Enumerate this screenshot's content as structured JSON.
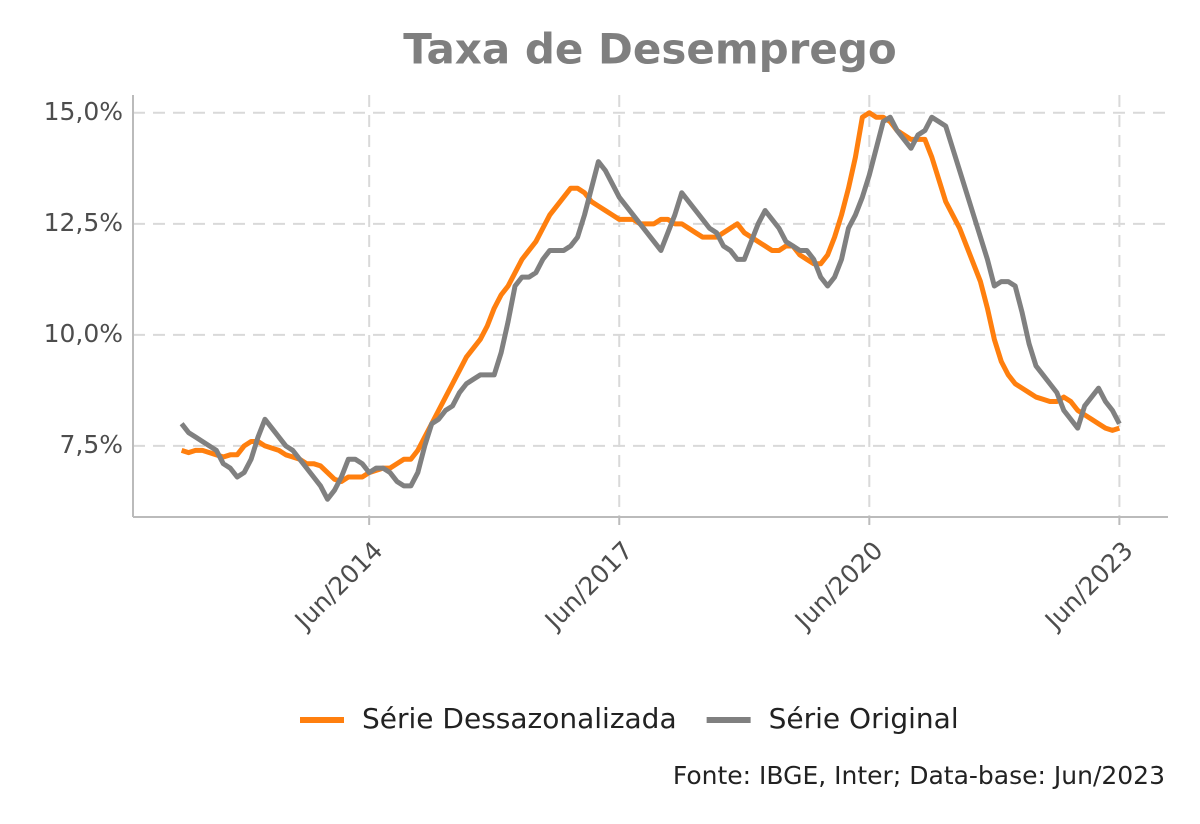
{
  "chart_data": {
    "type": "line",
    "title": "Taxa de Desemprego",
    "source": "Fonte: IBGE, Inter; Data-base: Jun/2023",
    "x": [
      "2012-03",
      "2012-04",
      "2012-05",
      "2012-06",
      "2012-07",
      "2012-08",
      "2012-09",
      "2012-10",
      "2012-11",
      "2012-12",
      "2013-01",
      "2013-02",
      "2013-03",
      "2013-04",
      "2013-05",
      "2013-06",
      "2013-07",
      "2013-08",
      "2013-09",
      "2013-10",
      "2013-11",
      "2013-12",
      "2014-01",
      "2014-02",
      "2014-03",
      "2014-04",
      "2014-05",
      "2014-06",
      "2014-07",
      "2014-08",
      "2014-09",
      "2014-10",
      "2014-11",
      "2014-12",
      "2015-01",
      "2015-02",
      "2015-03",
      "2015-04",
      "2015-05",
      "2015-06",
      "2015-07",
      "2015-08",
      "2015-09",
      "2015-10",
      "2015-11",
      "2015-12",
      "2016-01",
      "2016-02",
      "2016-03",
      "2016-04",
      "2016-05",
      "2016-06",
      "2016-07",
      "2016-08",
      "2016-09",
      "2016-10",
      "2016-11",
      "2016-12",
      "2017-01",
      "2017-02",
      "2017-03",
      "2017-04",
      "2017-05",
      "2017-06",
      "2017-07",
      "2017-08",
      "2017-09",
      "2017-10",
      "2017-11",
      "2017-12",
      "2018-01",
      "2018-02",
      "2018-03",
      "2018-04",
      "2018-05",
      "2018-06",
      "2018-07",
      "2018-08",
      "2018-09",
      "2018-10",
      "2018-11",
      "2018-12",
      "2019-01",
      "2019-02",
      "2019-03",
      "2019-04",
      "2019-05",
      "2019-06",
      "2019-07",
      "2019-08",
      "2019-09",
      "2019-10",
      "2019-11",
      "2019-12",
      "2020-01",
      "2020-02",
      "2020-03",
      "2020-04",
      "2020-05",
      "2020-06",
      "2020-07",
      "2020-08",
      "2020-09",
      "2020-10",
      "2020-11",
      "2020-12",
      "2021-01",
      "2021-02",
      "2021-03",
      "2021-04",
      "2021-05",
      "2021-06",
      "2021-07",
      "2021-08",
      "2021-09",
      "2021-10",
      "2021-11",
      "2021-12",
      "2022-01",
      "2022-02",
      "2022-03",
      "2022-04",
      "2022-05",
      "2022-06",
      "2022-07",
      "2022-08",
      "2022-09",
      "2022-10",
      "2022-11",
      "2022-12",
      "2023-01",
      "2023-02",
      "2023-03",
      "2023-04",
      "2023-05",
      "2023-06"
    ],
    "series": [
      {
        "name": "Série Dessazonalizada",
        "color": "#ff7f0e",
        "values": [
          7.4,
          7.35,
          7.4,
          7.4,
          7.35,
          7.3,
          7.25,
          7.3,
          7.3,
          7.5,
          7.6,
          7.6,
          7.5,
          7.45,
          7.4,
          7.3,
          7.25,
          7.2,
          7.1,
          7.1,
          7.05,
          6.9,
          6.75,
          6.7,
          6.8,
          6.8,
          6.8,
          6.9,
          6.95,
          7.0,
          7.0,
          7.1,
          7.2,
          7.2,
          7.4,
          7.7,
          8.0,
          8.3,
          8.6,
          8.9,
          9.2,
          9.5,
          9.7,
          9.9,
          10.2,
          10.6,
          10.9,
          11.1,
          11.4,
          11.7,
          11.9,
          12.1,
          12.4,
          12.7,
          12.9,
          13.1,
          13.3,
          13.3,
          13.2,
          13.0,
          12.9,
          12.8,
          12.7,
          12.6,
          12.6,
          12.6,
          12.5,
          12.5,
          12.5,
          12.6,
          12.6,
          12.5,
          12.5,
          12.4,
          12.3,
          12.2,
          12.2,
          12.2,
          12.3,
          12.4,
          12.5,
          12.3,
          12.2,
          12.1,
          12.0,
          11.9,
          11.9,
          12.0,
          12.0,
          11.8,
          11.7,
          11.6,
          11.6,
          11.8,
          12.2,
          12.7,
          13.3,
          14.0,
          14.9,
          15.0,
          14.9,
          14.9,
          14.8,
          14.6,
          14.5,
          14.4,
          14.4,
          14.4,
          14.0,
          13.5,
          13.0,
          12.7,
          12.4,
          12.0,
          11.6,
          11.2,
          10.6,
          9.9,
          9.4,
          9.1,
          8.9,
          8.8,
          8.7,
          8.6,
          8.55,
          8.5,
          8.5,
          8.6,
          8.5,
          8.3,
          8.2,
          8.1,
          8.0,
          7.9,
          7.85,
          7.9
        ]
      },
      {
        "name": "Série Original",
        "color": "#808080",
        "values": [
          8.0,
          7.8,
          7.7,
          7.6,
          7.5,
          7.4,
          7.1,
          7.0,
          6.8,
          6.9,
          7.2,
          7.7,
          8.1,
          7.9,
          7.7,
          7.5,
          7.4,
          7.2,
          7.0,
          6.8,
          6.6,
          6.3,
          6.5,
          6.8,
          7.2,
          7.2,
          7.1,
          6.9,
          7.0,
          7.0,
          6.9,
          6.7,
          6.6,
          6.6,
          6.9,
          7.5,
          8.0,
          8.1,
          8.3,
          8.4,
          8.7,
          8.9,
          9.0,
          9.1,
          9.1,
          9.1,
          9.6,
          10.3,
          11.1,
          11.3,
          11.3,
          11.4,
          11.7,
          11.9,
          11.9,
          11.9,
          12.0,
          12.2,
          12.7,
          13.3,
          13.9,
          13.7,
          13.4,
          13.1,
          12.9,
          12.7,
          12.5,
          12.3,
          12.1,
          11.9,
          12.3,
          12.7,
          13.2,
          13.0,
          12.8,
          12.6,
          12.4,
          12.3,
          12.0,
          11.9,
          11.7,
          11.7,
          12.1,
          12.5,
          12.8,
          12.6,
          12.4,
          12.1,
          12.0,
          11.9,
          11.9,
          11.7,
          11.3,
          11.1,
          11.3,
          11.7,
          12.4,
          12.7,
          13.1,
          13.6,
          14.2,
          14.8,
          14.9,
          14.6,
          14.4,
          14.2,
          14.5,
          14.6,
          14.9,
          14.8,
          14.7,
          14.2,
          13.7,
          13.2,
          12.7,
          12.2,
          11.7,
          11.1,
          11.2,
          11.2,
          11.1,
          10.5,
          9.8,
          9.3,
          9.1,
          8.9,
          8.7,
          8.3,
          8.1,
          7.9,
          8.4,
          8.6,
          8.8,
          8.5,
          8.3,
          8.0
        ]
      }
    ],
    "xlim": [
      "2011-08",
      "2024-01"
    ],
    "xticks": [
      {
        "value": "2014-06",
        "label": "Jun/2014"
      },
      {
        "value": "2017-06",
        "label": "Jun/2017"
      },
      {
        "value": "2020-06",
        "label": "Jun/2020"
      },
      {
        "value": "2023-06",
        "label": "Jun/2023"
      }
    ],
    "ylim": [
      5.9,
      15.4
    ],
    "yticks": [
      {
        "value": 7.5,
        "label": "7,5%"
      },
      {
        "value": 10,
        "label": "10,0%"
      },
      {
        "value": 12.5,
        "label": "12,5%"
      },
      {
        "value": 15,
        "label": "15,0%"
      }
    ],
    "grid": true,
    "legend": "bottom"
  }
}
